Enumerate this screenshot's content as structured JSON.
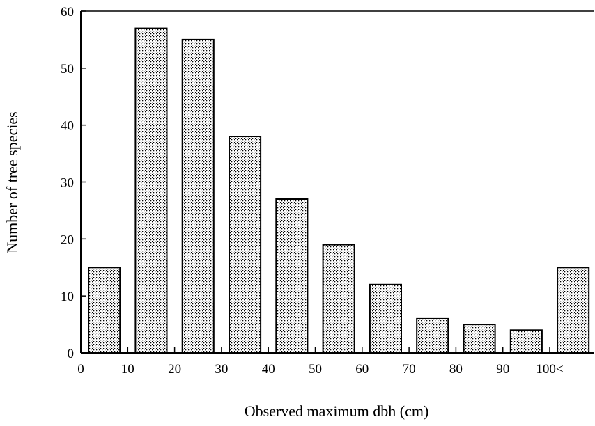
{
  "chart_data": {
    "type": "bar",
    "categories": [
      "0-10",
      "10-20",
      "20-30",
      "30-40",
      "40-50",
      "50-60",
      "60-70",
      "70-80",
      "80-90",
      "90-100",
      "100<"
    ],
    "values": [
      15,
      57,
      55,
      38,
      27,
      19,
      12,
      6,
      5,
      4,
      15
    ],
    "xlabel": "Observed maximum dbh (cm)",
    "ylabel": "Number of tree species",
    "xticks": [
      "0",
      "10",
      "20",
      "30",
      "40",
      "50",
      "60",
      "70",
      "80",
      "90",
      "100<"
    ],
    "yticks": [
      "0",
      "10",
      "20",
      "30",
      "40",
      "50",
      "60"
    ],
    "ylim": [
      0,
      60
    ],
    "grid": false,
    "bar_fill": "stippled",
    "colors": {
      "bar_fill": "#ffffff",
      "bar_dots": "#000000",
      "axis": "#000000"
    }
  }
}
